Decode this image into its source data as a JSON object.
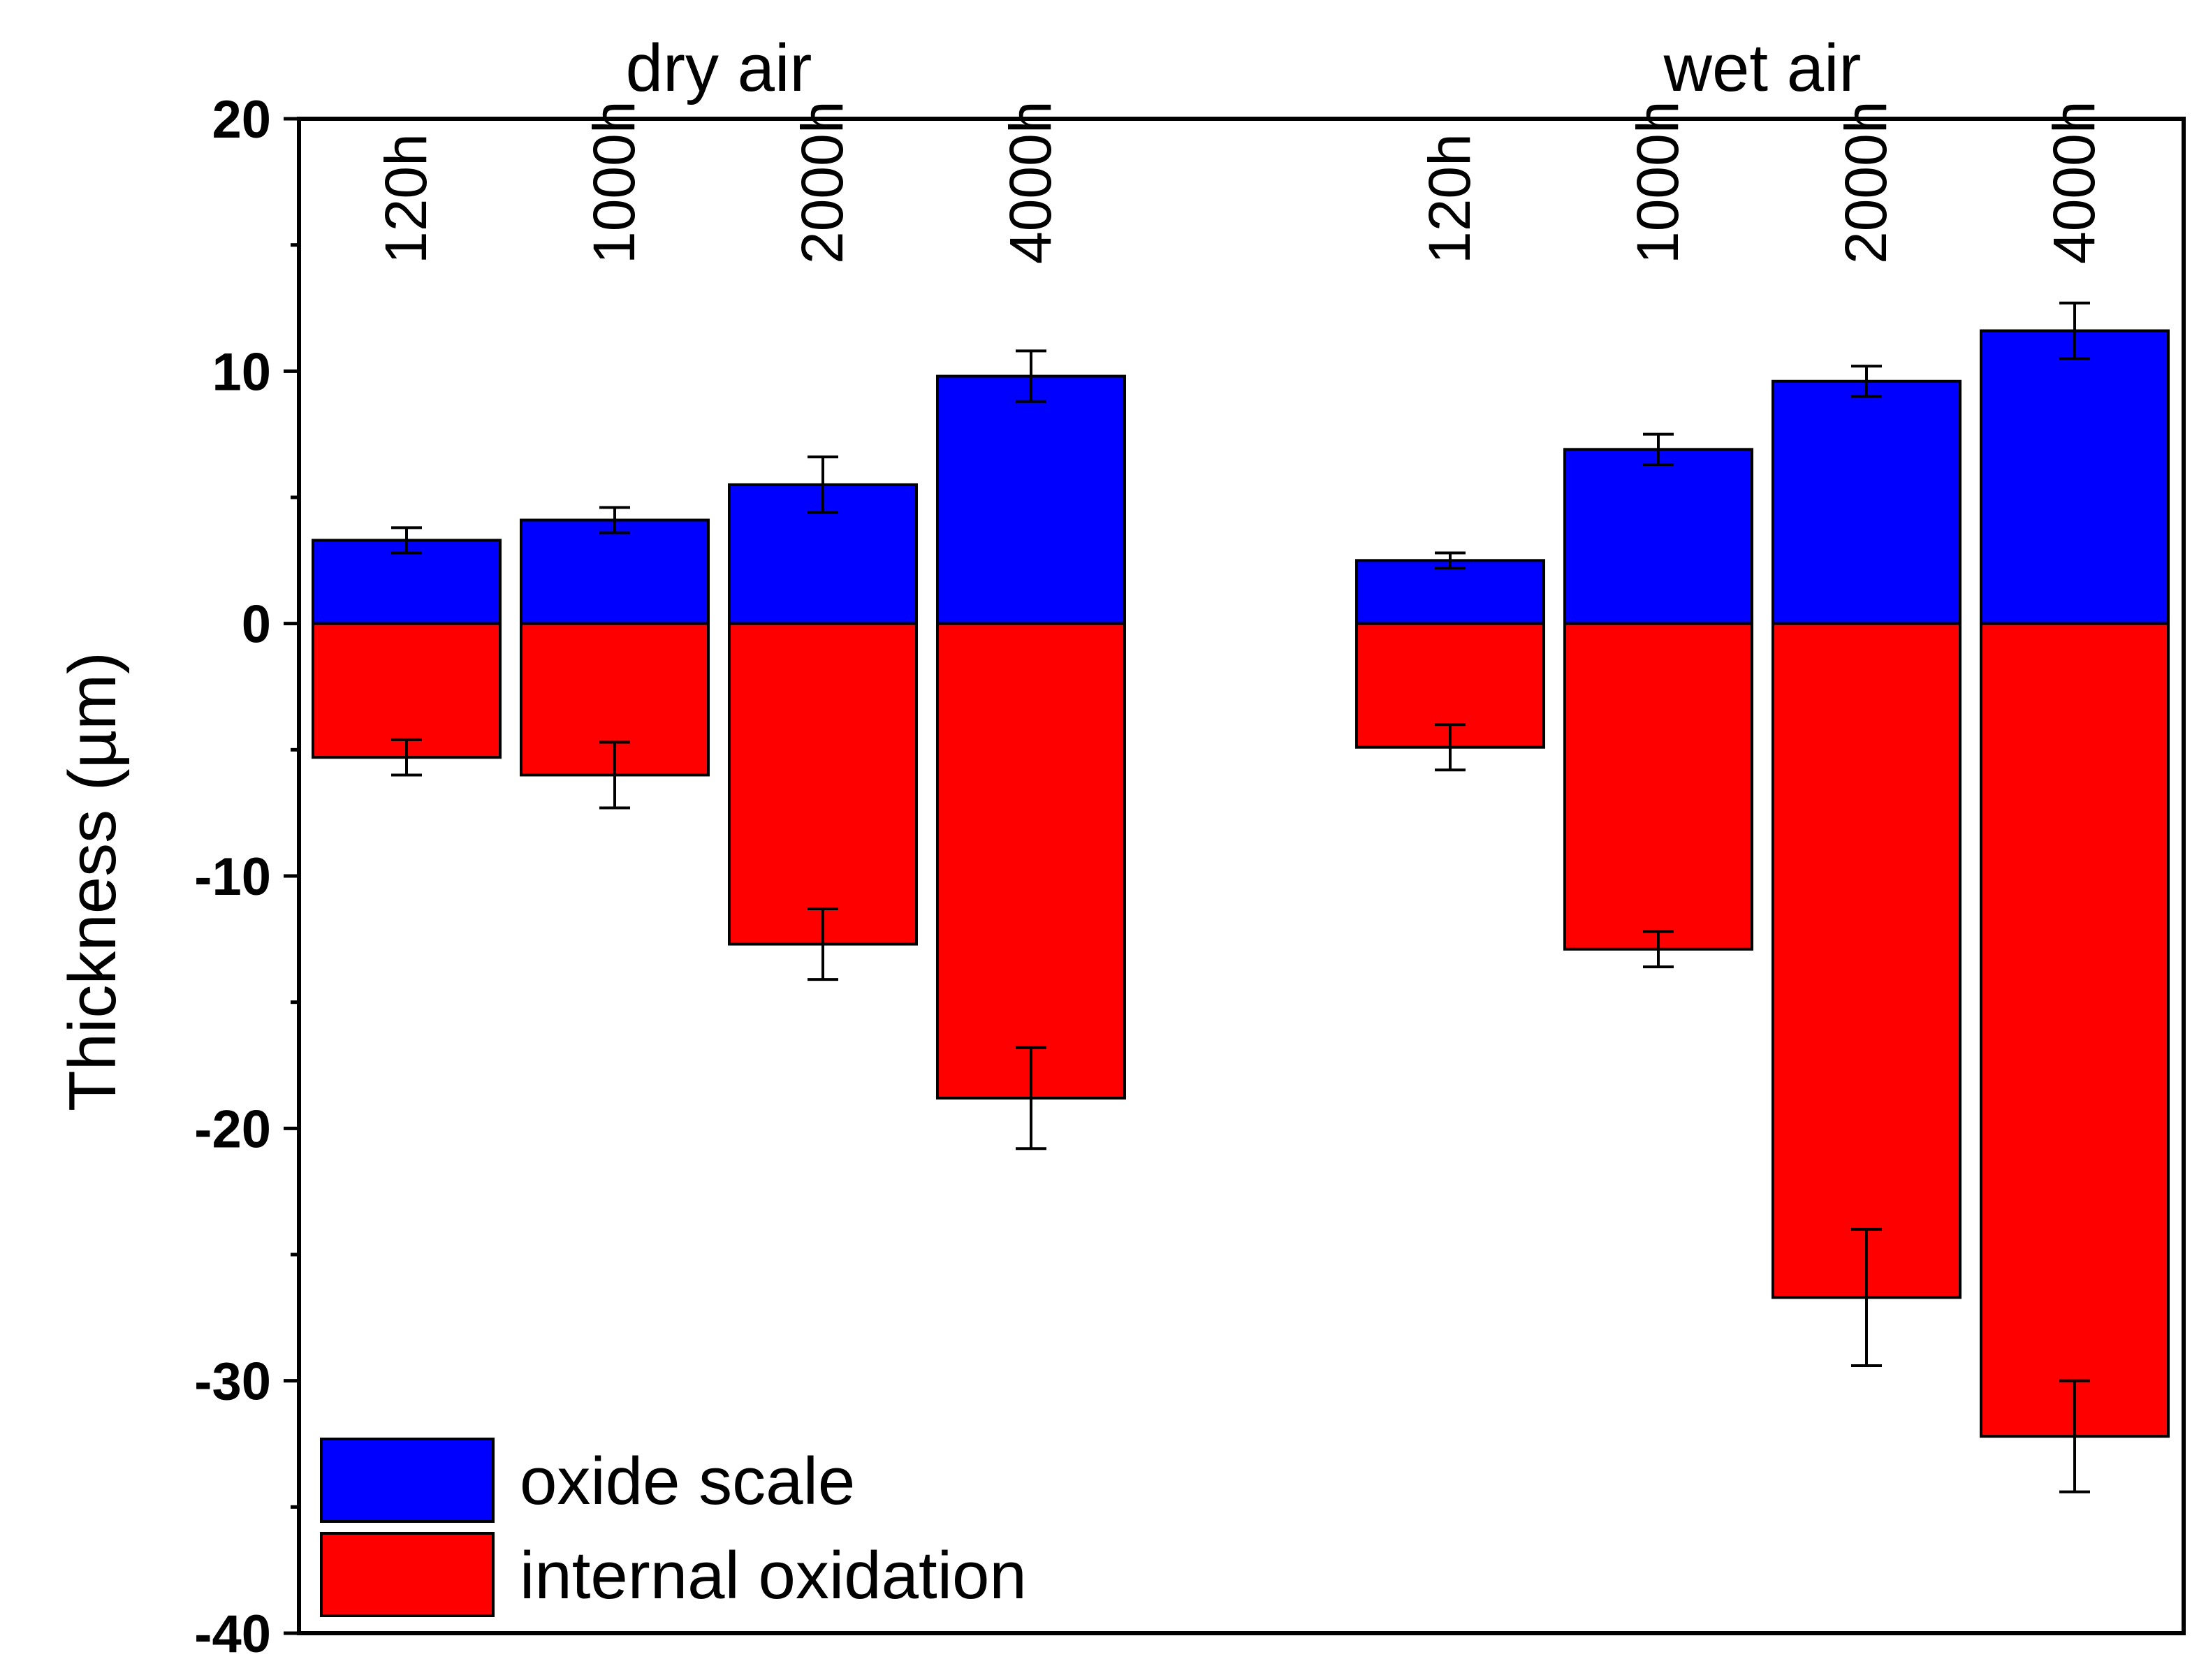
{
  "chart_data": {
    "type": "bar",
    "stacking": "diverging",
    "ylabel": "Thickness (µm)",
    "xlabel": "",
    "ylim": [
      -40,
      20
    ],
    "yticks": [
      20,
      10,
      0,
      -10,
      -20,
      -30,
      -40
    ],
    "ytick_labels": [
      "20",
      "10",
      "0",
      "-10",
      "-20",
      "-30",
      "-40"
    ],
    "groups": [
      {
        "name": "dry air",
        "categories": [
          "120h",
          "1000h",
          "2000h",
          "4000h"
        ]
      },
      {
        "name": "wet air",
        "categories": [
          "120h",
          "1000h",
          "2000h",
          "4000h"
        ]
      }
    ],
    "series": [
      {
        "name": "oxide scale",
        "color": "#0000ff",
        "values": [
          3.3,
          4.1,
          5.5,
          9.8,
          2.5,
          6.9,
          9.6,
          11.6
        ],
        "errors": [
          0.5,
          0.5,
          1.1,
          1.0,
          0.3,
          0.6,
          0.6,
          1.1
        ]
      },
      {
        "name": "internal oxidation",
        "color": "#ff0000",
        "values": [
          -5.3,
          -6.0,
          -12.7,
          -18.8,
          -4.9,
          -12.9,
          -26.7,
          -32.2
        ],
        "errors": [
          0.7,
          1.3,
          1.4,
          2.0,
          0.9,
          0.7,
          2.7,
          2.2
        ]
      }
    ],
    "legend": {
      "position": "bottom-left"
    }
  }
}
